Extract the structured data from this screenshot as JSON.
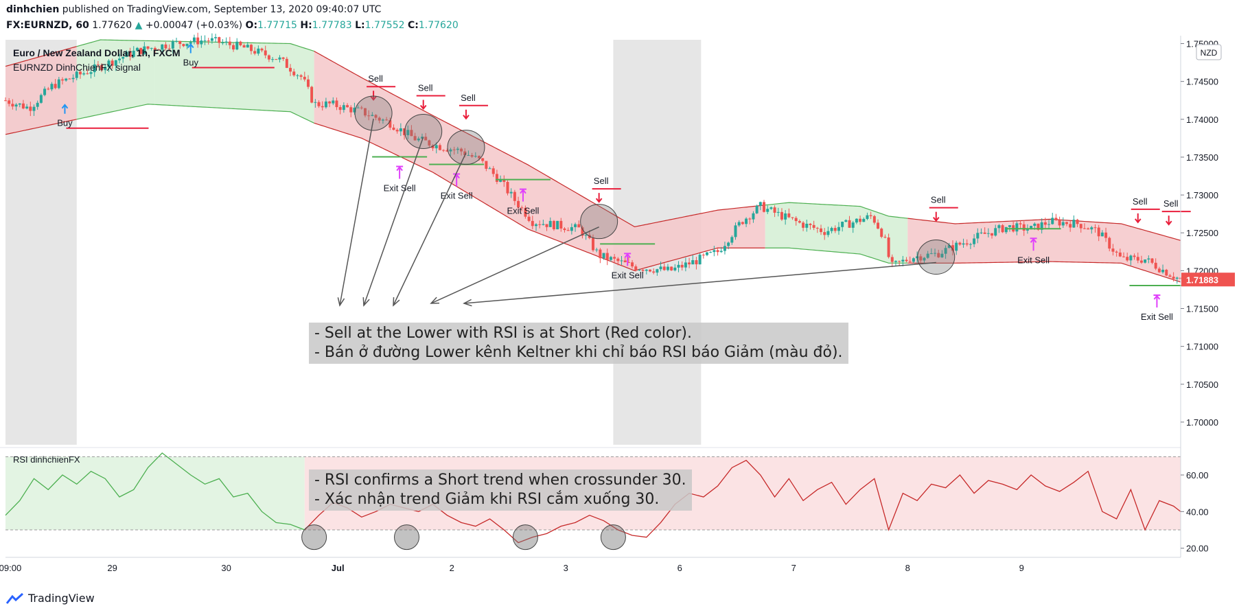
{
  "header": {
    "author": "dinhchien",
    "published": "published on TradingView.com, September 13, 2020 09:40:07 UTC",
    "symbol": "FX:EURNZD, 60",
    "last": "1.77620",
    "change": "+0.00047 (+0.03%)",
    "o_label": "O:",
    "o": "1.77715",
    "h_label": "H:",
    "h": "1.77783",
    "l_label": "L:",
    "l": "1.77552",
    "c_label": "C:",
    "c": "1.77620"
  },
  "legend": {
    "title": "Euro / New Zealand Dollar, 1h, FXCM",
    "indicator": "EURNZD DinhChienFX signal",
    "currency": "NZD",
    "rsi_title": "RSI dinhchienFX"
  },
  "notes": {
    "main_line1": "- Sell at the Lower with RSI is at Short (Red color).",
    "main_line2": "- Bán ở đường Lower kênh Keltner khi chỉ báo RSI báo Giảm (màu đỏ).",
    "rsi_line1": "- RSI confirms a Short trend when crossunder 30.",
    "rsi_line2": "- Xác nhận trend Giảm khi RSI cắm xuống 30."
  },
  "footer": {
    "brand": "TradingView"
  },
  "colors": {
    "bull": "#26a69a",
    "bear": "#ef5350",
    "band_red_fill": "#f4c7c9",
    "band_green_fill": "#d3efd3",
    "band_red_line": "#c62828",
    "band_green_line": "#4caf50",
    "sell_marker": "#e91e3b",
    "exit_marker": "#e040fb",
    "price_tag": "#ef5350"
  },
  "chart_data": [
    {
      "type": "candlestick",
      "title": "Euro / New Zealand Dollar, 1h, FXCM",
      "y_axis_ticks": [
        "1.75000",
        "1.74500",
        "1.74000",
        "1.73500",
        "1.73000",
        "1.72500",
        "1.72000",
        "1.71500",
        "1.71000",
        "1.70500",
        "1.70000"
      ],
      "ylim": [
        1.697,
        1.7505
      ],
      "x_axis_ticks": [
        "09:00",
        "29",
        "30",
        "Jul",
        "2",
        "3",
        "6",
        "7",
        "8",
        "9"
      ],
      "last_price_label": "1.71883",
      "price_path": [
        [
          0,
          1.7425
        ],
        [
          10,
          1.7415
        ],
        [
          20,
          1.7445
        ],
        [
          40,
          1.747
        ],
        [
          55,
          1.749
        ],
        [
          70,
          1.75
        ],
        [
          85,
          1.7505
        ],
        [
          100,
          1.7495
        ],
        [
          115,
          1.748
        ],
        [
          125,
          1.7455
        ],
        [
          130,
          1.742
        ],
        [
          137,
          1.742
        ],
        [
          150,
          1.741
        ],
        [
          162,
          1.7395
        ],
        [
          172,
          1.7375
        ],
        [
          182,
          1.7365
        ],
        [
          192,
          1.7358
        ],
        [
          200,
          1.7345
        ],
        [
          208,
          1.732
        ],
        [
          214,
          1.7295
        ],
        [
          222,
          1.7265
        ],
        [
          232,
          1.726
        ],
        [
          242,
          1.7255
        ],
        [
          250,
          1.722
        ],
        [
          265,
          1.7205
        ],
        [
          280,
          1.72
        ],
        [
          290,
          1.7212
        ],
        [
          300,
          1.7225
        ],
        [
          310,
          1.7265
        ],
        [
          318,
          1.7285
        ],
        [
          325,
          1.7275
        ],
        [
          335,
          1.7262
        ],
        [
          345,
          1.7252
        ],
        [
          355,
          1.7262
        ],
        [
          365,
          1.7272
        ],
        [
          370,
          1.7245
        ],
        [
          373,
          1.7205
        ],
        [
          382,
          1.7218
        ],
        [
          392,
          1.7222
        ],
        [
          402,
          1.7235
        ],
        [
          412,
          1.7248
        ],
        [
          422,
          1.7258
        ],
        [
          432,
          1.7255
        ],
        [
          440,
          1.7265
        ],
        [
          452,
          1.7262
        ],
        [
          460,
          1.7252
        ],
        [
          470,
          1.7215
        ],
        [
          480,
          1.7215
        ],
        [
          488,
          1.72
        ],
        [
          495,
          1.7188
        ]
      ],
      "keltner_upper": [
        [
          0,
          1.747
        ],
        [
          40,
          1.7505
        ],
        [
          120,
          1.75
        ],
        [
          130,
          1.749
        ],
        [
          150,
          1.7455
        ],
        [
          180,
          1.7405
        ],
        [
          220,
          1.734
        ],
        [
          265,
          1.7258
        ],
        [
          300,
          1.728
        ],
        [
          330,
          1.729
        ],
        [
          360,
          1.7285
        ],
        [
          372,
          1.7272
        ],
        [
          400,
          1.7262
        ],
        [
          440,
          1.7268
        ],
        [
          470,
          1.7262
        ],
        [
          495,
          1.724
        ]
      ],
      "keltner_lower": [
        [
          0,
          1.738
        ],
        [
          60,
          1.742
        ],
        [
          120,
          1.741
        ],
        [
          130,
          1.7395
        ],
        [
          150,
          1.7375
        ],
        [
          180,
          1.733
        ],
        [
          220,
          1.7255
        ],
        [
          265,
          1.72
        ],
        [
          300,
          1.723
        ],
        [
          330,
          1.723
        ],
        [
          360,
          1.7222
        ],
        [
          372,
          1.721
        ],
        [
          400,
          1.721
        ],
        [
          440,
          1.7212
        ],
        [
          470,
          1.721
        ],
        [
          495,
          1.7185
        ]
      ],
      "band_segments": [
        {
          "from": 0,
          "to": 30,
          "trend": "short"
        },
        {
          "from": 30,
          "to": 63,
          "trend": "long"
        },
        {
          "from": 63,
          "to": 130,
          "trend": "long"
        },
        {
          "from": 130,
          "to": 320,
          "trend": "short"
        },
        {
          "from": 320,
          "to": 380,
          "trend": "long"
        },
        {
          "from": 380,
          "to": 495,
          "trend": "short"
        }
      ],
      "signals": [
        {
          "label": "Buy",
          "x": 25,
          "price": 1.742
        },
        {
          "label": "Buy",
          "x": 78,
          "price": 1.75
        },
        {
          "label": "Sell",
          "x": 155,
          "price": 1.7425
        },
        {
          "label": "Sell",
          "x": 176,
          "price": 1.7413
        },
        {
          "label": "Sell",
          "x": 194,
          "price": 1.74
        },
        {
          "label": "Sell",
          "x": 250,
          "price": 1.729
        },
        {
          "label": "Sell",
          "x": 392,
          "price": 1.7265
        },
        {
          "label": "Sell",
          "x": 477,
          "price": 1.7263
        },
        {
          "label": "Sell",
          "x": 490,
          "price": 1.726
        },
        {
          "label": "Exit Sell",
          "x": 166,
          "price": 1.7325
        },
        {
          "label": "Exit Sell",
          "x": 190,
          "price": 1.7315
        },
        {
          "label": "Exit Sell",
          "x": 218,
          "price": 1.7295
        },
        {
          "label": "Exit Sell",
          "x": 262,
          "price": 1.721
        },
        {
          "label": "Exit Sell",
          "x": 433,
          "price": 1.723
        },
        {
          "label": "Exit Sell",
          "x": 485,
          "price": 1.7155
        }
      ]
    },
    {
      "type": "line",
      "title": "RSI dinhchienFX",
      "y_axis_ticks": [
        "60.00",
        "40.00",
        "20.00"
      ],
      "ylim": [
        15,
        75
      ],
      "levels": [
        70,
        30
      ],
      "x": [
        0,
        6,
        12,
        18,
        24,
        30,
        36,
        42,
        48,
        54,
        60,
        66,
        72,
        78,
        84,
        90,
        96,
        102,
        108,
        114,
        120,
        126,
        132,
        138,
        144,
        150,
        156,
        162,
        168,
        174,
        180,
        186,
        192,
        198,
        204,
        210,
        216,
        222,
        228,
        234,
        240,
        246,
        252,
        258,
        264,
        270,
        276,
        282,
        288,
        294,
        300,
        306,
        312,
        318,
        324,
        330,
        336,
        342,
        348,
        354,
        360,
        366,
        372,
        378,
        384,
        390,
        396,
        402,
        408,
        414,
        420,
        426,
        432,
        438,
        444,
        450,
        456,
        462,
        468,
        474,
        480,
        486,
        492,
        495
      ],
      "values": [
        38,
        46,
        58,
        52,
        60,
        55,
        62,
        58,
        48,
        52,
        64,
        72,
        66,
        60,
        55,
        58,
        48,
        50,
        40,
        34,
        33,
        30,
        38,
        45,
        42,
        37,
        40,
        44,
        42,
        40,
        44,
        38,
        34,
        32,
        36,
        30,
        23,
        26,
        28,
        32,
        34,
        38,
        35,
        30,
        27,
        26,
        34,
        44,
        50,
        48,
        54,
        64,
        68,
        60,
        48,
        58,
        46,
        52,
        56,
        44,
        52,
        58,
        30,
        50,
        46,
        55,
        53,
        60,
        50,
        57,
        55,
        52,
        60,
        54,
        51,
        56,
        62,
        40,
        36,
        52,
        30,
        46,
        43,
        40
      ],
      "segments": [
        {
          "from": 0,
          "to": 126,
          "trend": "long"
        },
        {
          "from": 126,
          "to": 495,
          "trend": "short"
        }
      ]
    }
  ]
}
